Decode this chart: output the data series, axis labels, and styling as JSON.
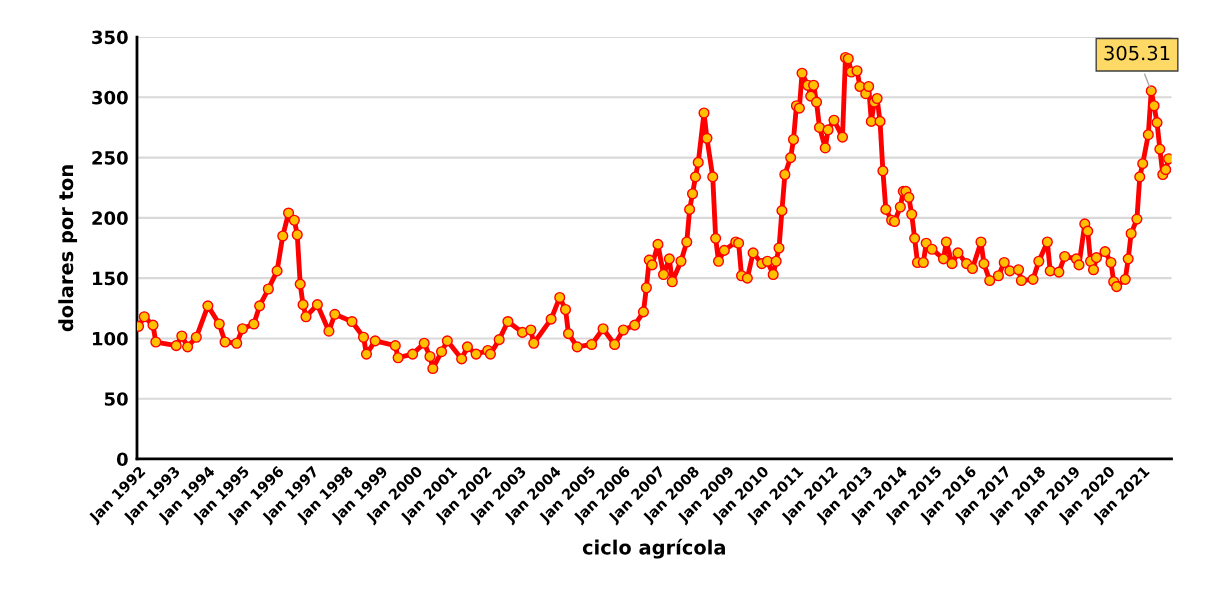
{
  "chart_data": {
    "type": "line",
    "xlabel": "ciclo agrícola",
    "ylabel": "dolares por ton",
    "x": [
      "1992-01",
      "1992-03",
      "1992-06",
      "1992-07",
      "1993-02",
      "1993-04",
      "1993-06",
      "1993-09",
      "1994-01",
      "1994-05",
      "1994-07",
      "1994-11",
      "1995-01",
      "1995-05",
      "1995-07",
      "1995-10",
      "1996-01",
      "1996-03",
      "1996-05",
      "1996-07",
      "1996-08",
      "1996-09",
      "1996-10",
      "1996-11",
      "1997-03",
      "1997-07",
      "1997-09",
      "1998-03",
      "1998-07",
      "1998-08",
      "1998-11",
      "1999-06",
      "1999-07",
      "1999-12",
      "2000-04",
      "2000-06",
      "2000-07",
      "2000-10",
      "2000-12",
      "2001-05",
      "2001-07",
      "2001-10",
      "2002-02",
      "2002-03",
      "2002-06",
      "2002-09",
      "2003-02",
      "2003-05",
      "2003-06",
      "2003-12",
      "2004-03",
      "2004-05",
      "2004-06",
      "2004-09",
      "2005-02",
      "2005-06",
      "2005-10",
      "2006-01",
      "2006-05",
      "2006-08",
      "2006-09",
      "2006-10",
      "2006-11",
      "2007-01",
      "2007-03",
      "2007-05",
      "2007-06",
      "2007-09",
      "2007-11",
      "2007-12",
      "2008-01",
      "2008-02",
      "2008-03",
      "2008-05",
      "2008-06",
      "2008-08",
      "2008-09",
      "2008-10",
      "2008-12",
      "2009-04",
      "2009-05",
      "2009-06",
      "2009-08",
      "2009-10",
      "2010-01",
      "2010-03",
      "2010-05",
      "2010-06",
      "2010-07",
      "2010-08",
      "2010-09",
      "2010-11",
      "2010-12",
      "2011-01",
      "2011-02",
      "2011-03",
      "2011-05",
      "2011-06",
      "2011-07",
      "2011-08",
      "2011-09",
      "2011-11",
      "2011-12",
      "2012-02",
      "2012-05",
      "2012-06",
      "2012-07",
      "2012-08",
      "2012-10",
      "2012-11",
      "2013-01",
      "2013-02",
      "2013-03",
      "2013-04",
      "2013-05",
      "2013-06",
      "2013-07",
      "2013-08",
      "2013-10",
      "2013-11",
      "2014-01",
      "2014-02",
      "2014-03",
      "2014-04",
      "2014-05",
      "2014-06",
      "2014-07",
      "2014-09",
      "2014-10",
      "2014-12",
      "2015-04",
      "2015-05",
      "2015-07",
      "2015-09",
      "2015-12",
      "2016-02",
      "2016-05",
      "2016-06",
      "2016-08",
      "2016-11",
      "2017-01",
      "2017-03",
      "2017-06",
      "2017-07",
      "2017-11",
      "2018-01",
      "2018-04",
      "2018-05",
      "2018-08",
      "2018-10",
      "2019-02",
      "2019-03",
      "2019-05",
      "2019-06",
      "2019-07",
      "2019-08",
      "2019-09",
      "2019-12",
      "2020-02",
      "2020-03",
      "2020-04",
      "2020-07",
      "2020-08",
      "2020-09",
      "2020-11",
      "2020-12",
      "2021-01",
      "2021-03",
      "2021-04",
      "2021-05",
      "2021-06",
      "2021-07",
      "2021-08",
      "2021-09",
      "2021-10"
    ],
    "series": [
      {
        "color": "#ff0000",
        "values": [
          110,
          118,
          111,
          97,
          94,
          102,
          93,
          101,
          127,
          112,
          97,
          96,
          108,
          112,
          127,
          141,
          156,
          185,
          204,
          198,
          186,
          145,
          128,
          118,
          128,
          106,
          120,
          114,
          101,
          87,
          98,
          94,
          84,
          87,
          96,
          85,
          75,
          89,
          98,
          83,
          93,
          87,
          90,
          87,
          99,
          114,
          105,
          107,
          96,
          116,
          134,
          124,
          104,
          93,
          95,
          108,
          95,
          107,
          111,
          122,
          142,
          165,
          161,
          178,
          153,
          166,
          147,
          164,
          180,
          207,
          220,
          234,
          246,
          287,
          266,
          234,
          183,
          164,
          173,
          180,
          179,
          152,
          150,
          171,
          162,
          164,
          153,
          164,
          175,
          206,
          236,
          250,
          265,
          293,
          291,
          320,
          310,
          301,
          310,
          296,
          275,
          258,
          273,
          281,
          267,
          333,
          332,
          321,
          322,
          309,
          303,
          309,
          280,
          296,
          299,
          280,
          239,
          207,
          198,
          197,
          209,
          222,
          222,
          217,
          203,
          183,
          163,
          163,
          179,
          174,
          166,
          180,
          162,
          171,
          162,
          158,
          180,
          162,
          148,
          152,
          163,
          156,
          157,
          148,
          149,
          164,
          180,
          156,
          155,
          168,
          166,
          161,
          195,
          189,
          164,
          157,
          167,
          172,
          163,
          147,
          143,
          149,
          166,
          187,
          199,
          234,
          245,
          269,
          305.31,
          293,
          279,
          257,
          236,
          240,
          249
        ]
      }
    ],
    "xlim": [
      "1991-12-15",
      "2021-11-01"
    ],
    "xticks": [
      {
        "value": "1992-01",
        "label": "Jan 1992"
      },
      {
        "value": "1993-01",
        "label": "Jan 1993"
      },
      {
        "value": "1994-01",
        "label": "Jan 1994"
      },
      {
        "value": "1995-01",
        "label": "Jan 1995"
      },
      {
        "value": "1996-01",
        "label": "Jan 1996"
      },
      {
        "value": "1997-01",
        "label": "Jan 1997"
      },
      {
        "value": "1998-01",
        "label": "Jan 1998"
      },
      {
        "value": "1999-01",
        "label": "Jan 1999"
      },
      {
        "value": "2000-01",
        "label": "Jan 2000"
      },
      {
        "value": "2001-01",
        "label": "Jan 2001"
      },
      {
        "value": "2002-01",
        "label": "Jan 2002"
      },
      {
        "value": "2003-01",
        "label": "Jan 2003"
      },
      {
        "value": "2004-01",
        "label": "Jan 2004"
      },
      {
        "value": "2005-01",
        "label": "Jan 2005"
      },
      {
        "value": "2006-01",
        "label": "Jan 2006"
      },
      {
        "value": "2007-01",
        "label": "Jan 2007"
      },
      {
        "value": "2008-01",
        "label": "Jan 2008"
      },
      {
        "value": "2009-01",
        "label": "Jan 2009"
      },
      {
        "value": "2010-01",
        "label": "Jan 2010"
      },
      {
        "value": "2011-01",
        "label": "Jan 2011"
      },
      {
        "value": "2012-01",
        "label": "Jan 2012"
      },
      {
        "value": "2013-01",
        "label": "Jan 2013"
      },
      {
        "value": "2014-01",
        "label": "Jan 2014"
      },
      {
        "value": "2015-01",
        "label": "Jan 2015"
      },
      {
        "value": "2016-01",
        "label": "Jan 2016"
      },
      {
        "value": "2017-01",
        "label": "Jan 2017"
      },
      {
        "value": "2018-01",
        "label": "Jan 2018"
      },
      {
        "value": "2019-01",
        "label": "Jan 2019"
      },
      {
        "value": "2020-01",
        "label": "Jan 2020"
      },
      {
        "value": "2021-01",
        "label": "Jan 2021"
      }
    ],
    "ylim": [
      0,
      350
    ],
    "yticks": [
      0,
      50,
      100,
      150,
      200,
      250,
      300,
      350
    ],
    "grid": "y",
    "legend": false,
    "marker": "circle",
    "line_style": "solid",
    "annotations": [
      {
        "text": "305.31",
        "x": "2021-04",
        "y": 305.31
      }
    ]
  }
}
